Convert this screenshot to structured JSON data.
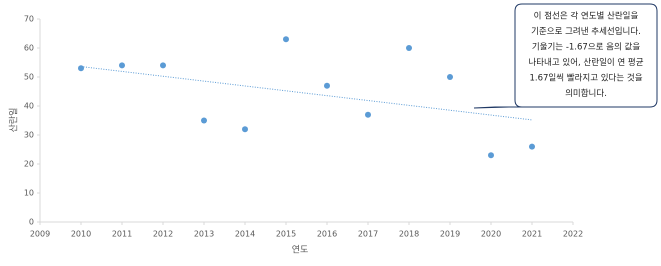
{
  "chart_data": {
    "type": "scatter",
    "x_label": "연도",
    "y_label": "산란일",
    "series": [
      {
        "color": "#5b9bd5",
        "x": [
          2010,
          2011,
          2012,
          2013,
          2014,
          2015,
          2016,
          2017,
          2018,
          2019,
          2020,
          2021
        ],
        "values": [
          53,
          54,
          54,
          35,
          32,
          63,
          47,
          37,
          60,
          50,
          23,
          26
        ]
      }
    ],
    "trendline": {
      "x": [
        2010,
        2021
      ],
      "values": [
        53.6,
        35.2
      ],
      "color": "#5b9bd5"
    },
    "xlim": [
      2009,
      2022
    ],
    "xticks": [
      2009,
      2010,
      2011,
      2012,
      2013,
      2014,
      2015,
      2016,
      2017,
      2018,
      2019,
      2020,
      2021,
      2022
    ],
    "ylim": [
      0,
      70
    ],
    "yticks": [
      0,
      10,
      20,
      30,
      40,
      50,
      60,
      70
    ],
    "grid": false,
    "annotation": [
      "이 점선은 각 연도별 산란일을",
      "기준으로 그려낸 추세선입니다.",
      "기울기는 -1.67으로 음의 값을",
      "나타내고 있어, 산란일이 연 평균",
      "1.67일씩 빨라지고 있다는 것을",
      "의미합니다."
    ]
  }
}
